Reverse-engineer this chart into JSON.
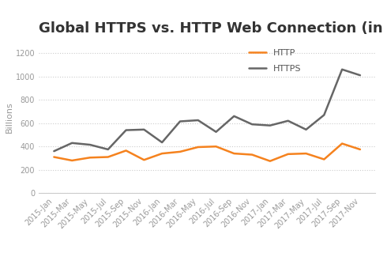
{
  "title": "Global HTTPS vs. HTTP Web Connection (in billions)",
  "ylabel": "Billions",
  "x_labels": [
    "2015-Jan",
    "2015-Mar",
    "2015-May",
    "2015-Jul",
    "2015-Sep",
    "2015-Nov",
    "2016-Jan",
    "2016-Mar",
    "2016-May",
    "2016-Jul",
    "2016-Sep",
    "2016-Nov",
    "2017-Jan",
    "2017-Mar",
    "2017-May",
    "2017-Jul",
    "2017-Sep",
    "2017-Nov"
  ],
  "http": [
    310,
    280,
    305,
    310,
    365,
    285,
    340,
    355,
    395,
    400,
    340,
    330,
    275,
    335,
    340,
    290,
    425,
    375
  ],
  "https": [
    360,
    430,
    415,
    375,
    540,
    545,
    435,
    615,
    625,
    525,
    660,
    590,
    580,
    620,
    545,
    670,
    1060,
    1010
  ],
  "http_color": "#f5821e",
  "https_color": "#666666",
  "bg_color": "#ffffff",
  "grid_color": "#cccccc",
  "ylim_min": 0,
  "ylim_max": 1300,
  "yticks": [
    0,
    200,
    400,
    600,
    800,
    1000,
    1200
  ],
  "title_fontsize": 13,
  "label_fontsize": 8,
  "tick_fontsize": 7,
  "line_width": 1.8,
  "legend_fontsize": 8
}
